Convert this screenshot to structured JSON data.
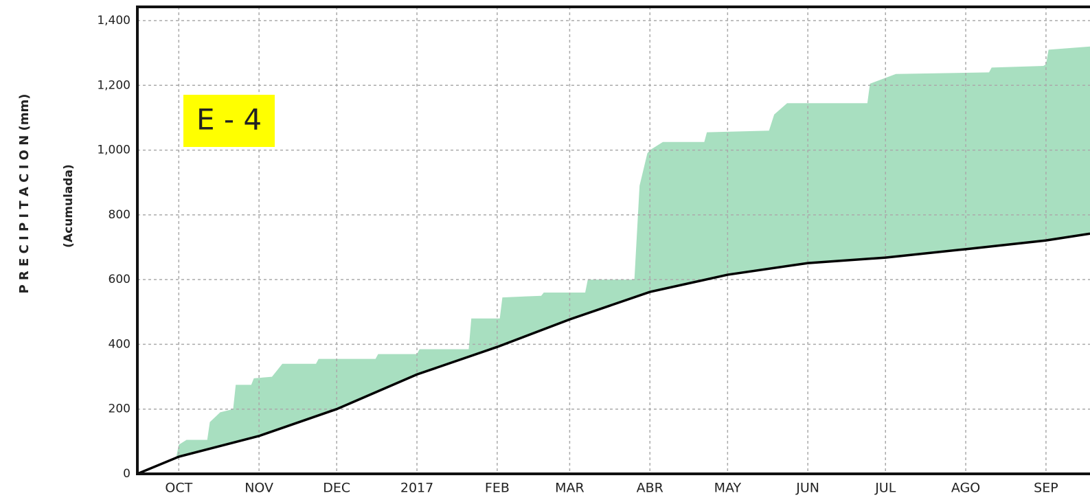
{
  "chart_data": {
    "type": "area",
    "y_label": "P R E C I P I T A C I O N (mm)",
    "y_sublabel": "(Acumulada)",
    "annotation": "E -  4",
    "xlim": [
      0,
      368
    ],
    "xticks": [
      {
        "value": 16,
        "label": "OCT"
      },
      {
        "value": 47,
        "label": "NOV"
      },
      {
        "value": 77,
        "label": "DEC"
      },
      {
        "value": 108,
        "label": "2017"
      },
      {
        "value": 139,
        "label": "FEB"
      },
      {
        "value": 167,
        "label": "MAR"
      },
      {
        "value": 198,
        "label": "ABR"
      },
      {
        "value": 228,
        "label": "MAY"
      },
      {
        "value": 259,
        "label": "JUN"
      },
      {
        "value": 289,
        "label": "JUL"
      },
      {
        "value": 320,
        "label": "AGO"
      },
      {
        "value": 351,
        "label": "SEP"
      }
    ],
    "ylim": [
      0,
      1400
    ],
    "yticks": [
      0,
      200,
      400,
      600,
      800,
      {
        "value": 1000,
        "label": "1,000"
      },
      {
        "value": 1200,
        "label": "1,200"
      },
      {
        "value": 1400,
        "label": "1,400"
      }
    ],
    "grid": true,
    "series": [
      {
        "color": "#a8dfc0",
        "x": [
          0,
          15,
          16,
          19,
          27,
          28,
          32,
          37,
          38,
          44,
          45,
          52,
          56,
          69,
          70,
          92,
          93,
          108,
          109,
          128,
          129,
          140,
          141,
          156,
          157,
          173,
          174,
          192,
          194,
          197,
          198,
          203,
          219,
          220,
          244,
          246,
          251,
          282,
          283,
          293,
          329,
          330,
          350,
          351,
          352,
          368
        ],
        "values": [
          0,
          50,
          90,
          105,
          105,
          160,
          190,
          200,
          275,
          275,
          295,
          300,
          340,
          340,
          355,
          355,
          370,
          370,
          385,
          385,
          480,
          480,
          545,
          550,
          560,
          560,
          600,
          600,
          890,
          990,
          1000,
          1025,
          1025,
          1055,
          1060,
          1110,
          1145,
          1145,
          1205,
          1235,
          1240,
          1255,
          1260,
          1265,
          1310,
          1320
        ]
      },
      {
        "color": "#000000",
        "x": [
          0,
          16,
          47,
          77,
          108,
          139,
          167,
          198,
          228,
          259,
          289,
          320,
          351,
          368
        ],
        "values": [
          0,
          53,
          117,
          200,
          307,
          392,
          477,
          562,
          615,
          651,
          668,
          694,
          721,
          742
        ]
      }
    ]
  }
}
